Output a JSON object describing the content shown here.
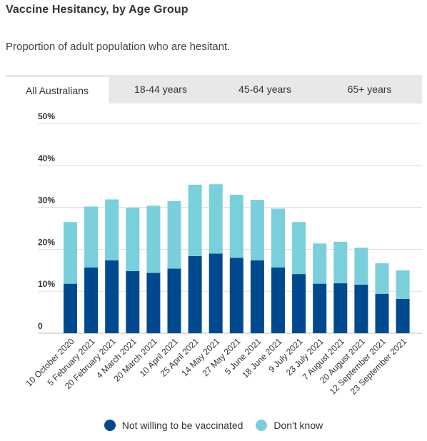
{
  "title": "Vaccine Hesitancy, by Age Group",
  "subtitle": "Proportion of adult population who are hesitant.",
  "tabs": [
    {
      "label": "All Australians",
      "active": true
    },
    {
      "label": "18-44 years",
      "active": false
    },
    {
      "label": "45-64 years",
      "active": false
    },
    {
      "label": "65+ years",
      "active": false
    }
  ],
  "colors": {
    "not_willing": "#00498f",
    "dont_know": "#79d0dc"
  },
  "chart_data": {
    "type": "bar",
    "stacked": true,
    "categories": [
      "10 October 2020",
      "5 February 2021",
      "20 February 2021",
      "4 March 2021",
      "20 March 2021",
      "10 April 2021",
      "25 April 2021",
      "14 May 2021",
      "27 May 2021",
      "5 June 2021",
      "18 June 2021",
      "9 July 2021",
      "23 July 2021",
      "7 August 2021",
      "20 August 2021",
      "12 September 2021",
      "23 September 2021"
    ],
    "series": [
      {
        "name": "Not willing to be vaccinated",
        "values": [
          11.8,
          15.7,
          17.4,
          14.8,
          14.4,
          15.4,
          18.4,
          19.0,
          18.0,
          17.4,
          15.7,
          14.1,
          11.8,
          11.9,
          11.6,
          9.4,
          8.2
        ]
      },
      {
        "name": "Don't know",
        "values": [
          14.7,
          14.5,
          14.5,
          15.1,
          16.0,
          16.1,
          17.0,
          16.5,
          15.0,
          14.4,
          14.0,
          12.4,
          9.6,
          9.9,
          8.8,
          7.3,
          6.8
        ]
      }
    ],
    "yticks": [
      "0",
      "10%",
      "20%",
      "30%",
      "40%",
      "50%"
    ],
    "ylim": [
      0,
      50
    ],
    "grid": true,
    "legend_position": "bottom"
  }
}
